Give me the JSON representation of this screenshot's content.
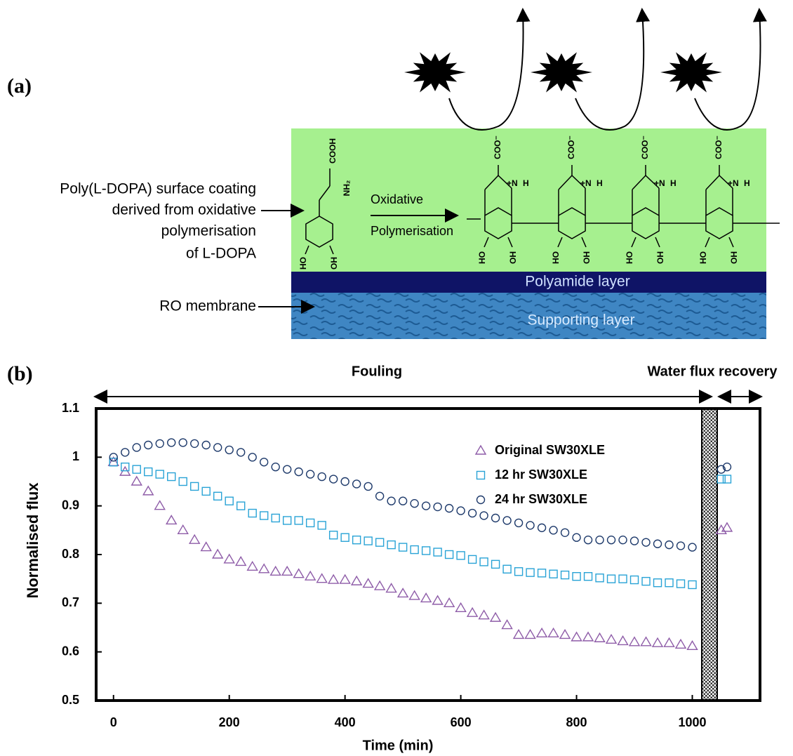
{
  "panel_a": {
    "label": "(a)",
    "coating_lines": [
      "Poly(L-DOPA) surface coating",
      "derived from oxidative",
      "polymerisation",
      "of L-DOPA"
    ],
    "membrane": "RO membrane",
    "reaction_lines": [
      "Oxidative",
      "Polymerisation"
    ],
    "polyamide": "Polyamide layer",
    "support": "Supporting layer",
    "chem": {
      "cooh": "COOH",
      "nh2": "NH₂",
      "ho": "HO",
      "oh": "OH",
      "coo": "COO⁻",
      "n": "+N",
      "h": "H"
    }
  },
  "chart_data": {
    "type": "scatter",
    "label": "(b)",
    "phase_fouling": "Fouling",
    "phase_recovery": "Water flux recovery",
    "xlabel": "Time (min)",
    "ylabel": "Normalised flux",
    "xlim": [
      -30,
      1117
    ],
    "ylim": [
      0.5,
      1.1
    ],
    "xticks": [
      0,
      200,
      400,
      600,
      800,
      1000
    ],
    "yticks": [
      0.5,
      0.6,
      0.7,
      0.8,
      0.9,
      1,
      1.1
    ],
    "legend": "upper right",
    "x": [
      0,
      20,
      40,
      60,
      80,
      100,
      120,
      140,
      160,
      180,
      200,
      220,
      240,
      260,
      280,
      300,
      320,
      340,
      360,
      380,
      400,
      420,
      440,
      460,
      480,
      500,
      520,
      540,
      560,
      580,
      600,
      620,
      640,
      660,
      680,
      700,
      720,
      740,
      760,
      780,
      800,
      820,
      840,
      860,
      880,
      900,
      920,
      940,
      960,
      980,
      1000,
      1050,
      1060
    ],
    "series": [
      {
        "name": "Original  SW30XLE",
        "color": "#8e5ca8",
        "marker": "triangle",
        "values": [
          0.99,
          0.97,
          0.95,
          0.93,
          0.9,
          0.87,
          0.85,
          0.83,
          0.815,
          0.8,
          0.79,
          0.785,
          0.775,
          0.77,
          0.765,
          0.765,
          0.76,
          0.755,
          0.75,
          0.748,
          0.748,
          0.745,
          0.74,
          0.735,
          0.73,
          0.72,
          0.715,
          0.71,
          0.705,
          0.7,
          0.69,
          0.68,
          0.675,
          0.67,
          0.655,
          0.635,
          0.635,
          0.638,
          0.638,
          0.635,
          0.63,
          0.63,
          0.628,
          0.625,
          0.622,
          0.62,
          0.62,
          0.618,
          0.618,
          0.615,
          0.612,
          0.85,
          0.855
        ]
      },
      {
        "name": "12 hr  SW30XLE",
        "color": "#29a3d6",
        "marker": "square",
        "values": [
          0.99,
          0.98,
          0.975,
          0.97,
          0.965,
          0.96,
          0.95,
          0.94,
          0.93,
          0.92,
          0.91,
          0.9,
          0.885,
          0.88,
          0.875,
          0.87,
          0.87,
          0.865,
          0.86,
          0.84,
          0.835,
          0.83,
          0.828,
          0.825,
          0.82,
          0.815,
          0.81,
          0.808,
          0.805,
          0.8,
          0.798,
          0.79,
          0.785,
          0.78,
          0.77,
          0.765,
          0.763,
          0.762,
          0.76,
          0.758,
          0.755,
          0.755,
          0.752,
          0.75,
          0.75,
          0.748,
          0.745,
          0.742,
          0.742,
          0.74,
          0.738,
          0.955,
          0.955
        ]
      },
      {
        "name": "24 hr  SW30XLE",
        "color": "#1e3a6b",
        "marker": "circle",
        "values": [
          1.0,
          1.01,
          1.02,
          1.025,
          1.028,
          1.03,
          1.03,
          1.028,
          1.025,
          1.02,
          1.015,
          1.01,
          1.0,
          0.99,
          0.98,
          0.975,
          0.97,
          0.965,
          0.96,
          0.955,
          0.95,
          0.945,
          0.94,
          0.92,
          0.91,
          0.91,
          0.905,
          0.9,
          0.898,
          0.895,
          0.89,
          0.885,
          0.88,
          0.875,
          0.87,
          0.865,
          0.86,
          0.855,
          0.85,
          0.845,
          0.835,
          0.83,
          0.83,
          0.83,
          0.83,
          0.828,
          0.825,
          0.822,
          0.82,
          0.818,
          0.815,
          0.975,
          0.98
        ]
      }
    ]
  }
}
